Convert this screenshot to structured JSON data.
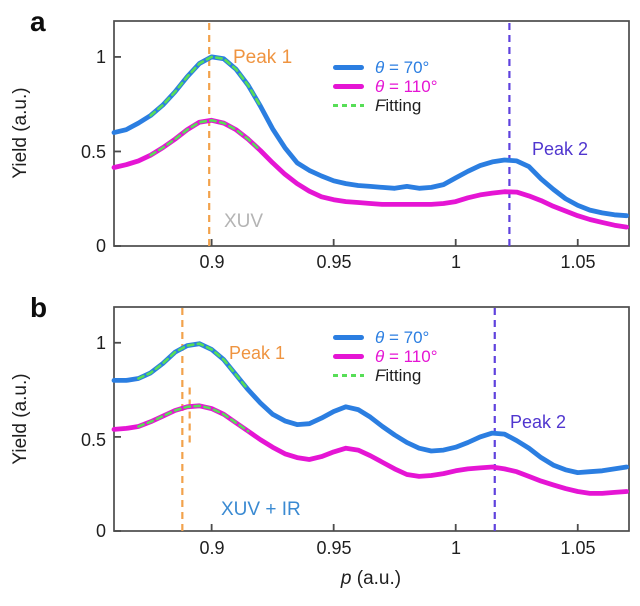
{
  "figure": {
    "panels": [
      {
        "letter": "a",
        "ylabel": "Yield (a.u.)"
      },
      {
        "letter": "b",
        "ylabel": "Yield (a.u.)"
      }
    ],
    "xlabel": "p (a.u.)"
  },
  "colors": {
    "curve_blue": "#2b7ee1",
    "curve_magenta": "#e515d4",
    "fit_green": "#57de57",
    "peak1_orange": "#f2a24c",
    "peak2_purple": "#5f42dd",
    "xuv_gray": "#b4b4b4",
    "xuv_ir_blue": "#3a8ad2",
    "axis": "#4b4b4b"
  },
  "chart_data": [
    {
      "panel": "a",
      "type": "line",
      "xlabel": "p (a.u.)",
      "ylabel": "Yield (a.u.)",
      "xlim": [
        0.86,
        1.071
      ],
      "ylim": [
        0,
        1.19
      ],
      "xticks": [
        0.9,
        0.95,
        1.0,
        1.05
      ],
      "xtick_labels": [
        "0.9",
        "0.95",
        "1",
        "1.05"
      ],
      "yticks": [
        0,
        0.5,
        1
      ],
      "ytick_labels": [
        "0",
        "0.5",
        "1"
      ],
      "grid": false,
      "legend_position": "upper-center-left-of-peak2",
      "x": [
        0.86,
        0.865,
        0.87,
        0.875,
        0.88,
        0.885,
        0.89,
        0.895,
        0.9,
        0.905,
        0.91,
        0.915,
        0.92,
        0.925,
        0.93,
        0.935,
        0.94,
        0.945,
        0.95,
        0.955,
        0.96,
        0.965,
        0.97,
        0.975,
        0.98,
        0.985,
        0.99,
        0.995,
        1.0,
        1.005,
        1.01,
        1.015,
        1.02,
        1.025,
        1.03,
        1.035,
        1.04,
        1.045,
        1.05,
        1.055,
        1.06,
        1.065,
        1.07
      ],
      "series": [
        {
          "name": "θ = 70°",
          "color": "#2b7ee1",
          "values": [
            0.6,
            0.615,
            0.65,
            0.69,
            0.745,
            0.815,
            0.895,
            0.965,
            1.0,
            0.99,
            0.935,
            0.85,
            0.74,
            0.62,
            0.52,
            0.44,
            0.4,
            0.37,
            0.345,
            0.33,
            0.32,
            0.315,
            0.31,
            0.305,
            0.315,
            0.305,
            0.31,
            0.325,
            0.36,
            0.395,
            0.425,
            0.445,
            0.455,
            0.45,
            0.42,
            0.355,
            0.3,
            0.25,
            0.215,
            0.19,
            0.175,
            0.165,
            0.16
          ]
        },
        {
          "name": "θ = 110°",
          "color": "#e515d4",
          "values": [
            0.415,
            0.43,
            0.45,
            0.48,
            0.52,
            0.565,
            0.615,
            0.655,
            0.665,
            0.65,
            0.615,
            0.565,
            0.505,
            0.44,
            0.38,
            0.33,
            0.29,
            0.26,
            0.245,
            0.235,
            0.23,
            0.225,
            0.22,
            0.22,
            0.22,
            0.22,
            0.22,
            0.225,
            0.235,
            0.255,
            0.27,
            0.28,
            0.287,
            0.285,
            0.265,
            0.24,
            0.21,
            0.185,
            0.16,
            0.14,
            0.125,
            0.11,
            0.1
          ]
        },
        {
          "name": "Fitting",
          "color": "#57de57",
          "style": "dashed",
          "overlay_of": 0,
          "x_range": [
            0.873,
            0.923
          ]
        },
        {
          "name": "Fitting",
          "color": "#57de57",
          "style": "dashed",
          "overlay_of": 1,
          "x_range": [
            0.873,
            0.923
          ]
        }
      ],
      "vlines": [
        {
          "x": 0.899,
          "color": "#f2a24c",
          "style": "dashed",
          "label": "Peak 1"
        },
        {
          "x": 1.022,
          "color": "#5f42dd",
          "style": "dashed",
          "label": "Peak 2"
        }
      ],
      "annotations": [
        {
          "text": "XUV",
          "color": "#b4b4b4"
        }
      ]
    },
    {
      "panel": "b",
      "type": "line",
      "xlabel": "p (a.u.)",
      "ylabel": "Yield (a.u.)",
      "xlim": [
        0.86,
        1.071
      ],
      "ylim": [
        0,
        1.19
      ],
      "xticks": [
        0.9,
        0.95,
        1.0,
        1.05
      ],
      "xtick_labels": [
        "0.9",
        "0.95",
        "1",
        "1.05"
      ],
      "yticks": [
        0,
        0.5,
        1
      ],
      "ytick_labels": [
        "0",
        "0.5",
        "1"
      ],
      "grid": false,
      "legend_position": "upper-center-left-of-peak2",
      "x": [
        0.86,
        0.865,
        0.87,
        0.875,
        0.88,
        0.885,
        0.89,
        0.895,
        0.9,
        0.905,
        0.91,
        0.915,
        0.92,
        0.925,
        0.93,
        0.935,
        0.94,
        0.945,
        0.95,
        0.955,
        0.96,
        0.965,
        0.97,
        0.975,
        0.98,
        0.985,
        0.99,
        0.995,
        1.0,
        1.005,
        1.01,
        1.015,
        1.02,
        1.025,
        1.03,
        1.035,
        1.04,
        1.045,
        1.05,
        1.055,
        1.06,
        1.065,
        1.07
      ],
      "series": [
        {
          "name": "θ = 70°",
          "color": "#2b7ee1",
          "values": [
            0.8,
            0.8,
            0.81,
            0.84,
            0.89,
            0.95,
            0.985,
            0.995,
            0.965,
            0.91,
            0.83,
            0.75,
            0.68,
            0.62,
            0.585,
            0.565,
            0.57,
            0.6,
            0.635,
            0.66,
            0.645,
            0.605,
            0.555,
            0.51,
            0.47,
            0.44,
            0.425,
            0.43,
            0.445,
            0.47,
            0.5,
            0.52,
            0.515,
            0.48,
            0.44,
            0.39,
            0.35,
            0.325,
            0.31,
            0.315,
            0.32,
            0.33,
            0.34
          ]
        },
        {
          "name": "θ = 110°",
          "color": "#e515d4",
          "values": [
            0.54,
            0.545,
            0.555,
            0.58,
            0.61,
            0.64,
            0.66,
            0.665,
            0.65,
            0.62,
            0.575,
            0.53,
            0.485,
            0.445,
            0.41,
            0.39,
            0.38,
            0.395,
            0.42,
            0.44,
            0.43,
            0.4,
            0.365,
            0.33,
            0.3,
            0.29,
            0.295,
            0.305,
            0.32,
            0.33,
            0.335,
            0.34,
            0.33,
            0.315,
            0.29,
            0.265,
            0.245,
            0.225,
            0.21,
            0.2,
            0.2,
            0.205,
            0.21
          ]
        },
        {
          "name": "Fitting",
          "color": "#57de57",
          "style": "dashed",
          "overlay_of": 0,
          "x_range": [
            0.869,
            0.915
          ]
        },
        {
          "name": "Fitting",
          "color": "#57de57",
          "style": "dashed",
          "overlay_of": 1,
          "x_range": [
            0.869,
            0.915
          ]
        }
      ],
      "vlines": [
        {
          "x": 0.888,
          "color": "#f2a24c",
          "style": "dashed",
          "label": "Peak 1"
        },
        {
          "x": 0.891,
          "color": "#f2a24c",
          "style": "dashed",
          "y_range": [
            0.47,
            0.78
          ]
        },
        {
          "x": 1.016,
          "color": "#5f42dd",
          "style": "dashed",
          "label": "Peak 2"
        }
      ],
      "annotations": [
        {
          "text": "XUV + IR",
          "color": "#3a8ad2"
        }
      ]
    }
  ]
}
